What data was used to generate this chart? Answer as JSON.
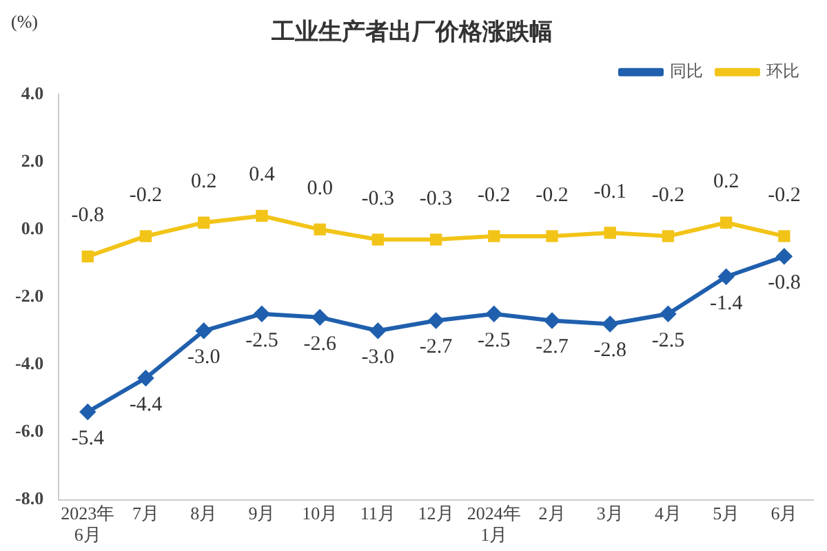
{
  "chart_data": {
    "type": "line",
    "title": "工业生产者出厂价格涨跌幅",
    "ylabel": "(%)",
    "categories": [
      "2023年\n6月",
      "7月",
      "8月",
      "9月",
      "10月",
      "11月",
      "12月",
      "2024年\n1月",
      "2月",
      "3月",
      "4月",
      "5月",
      "6月"
    ],
    "series": [
      {
        "name": "同比",
        "color": "#1f5fad",
        "marker": "diamond",
        "values": [
          -5.4,
          -4.4,
          -3.0,
          -2.5,
          -2.6,
          -3.0,
          -2.7,
          -2.5,
          -2.7,
          -2.8,
          -2.5,
          -1.4,
          -0.8
        ],
        "value_labels": [
          "-5.4",
          "-4.4",
          "-3.0",
          "-2.5",
          "-2.6",
          "-3.0",
          "-2.7",
          "-2.5",
          "-2.7",
          "-2.8",
          "-2.5",
          "-1.4",
          "-0.8"
        ]
      },
      {
        "name": "环比",
        "color": "#f2c418",
        "marker": "square",
        "values": [
          -0.8,
          -0.2,
          0.2,
          0.4,
          0.0,
          -0.3,
          -0.3,
          -0.2,
          -0.2,
          -0.1,
          -0.2,
          0.2,
          -0.2
        ],
        "value_labels": [
          "-0.8",
          "-0.2",
          "0.2",
          "0.4",
          "0.0",
          "-0.3",
          "-0.3",
          "-0.2",
          "-0.2",
          "-0.1",
          "-0.2",
          "0.2",
          "-0.2"
        ]
      }
    ],
    "ylim": [
      -8,
      4
    ],
    "yticks": [
      {
        "value": -8,
        "label": "-8.0"
      },
      {
        "value": -6,
        "label": "-6.0"
      },
      {
        "value": -4,
        "label": "-4.0"
      },
      {
        "value": -2,
        "label": "-2.0"
      },
      {
        "value": 0,
        "label": "0.0"
      },
      {
        "value": 2,
        "label": "2.0"
      },
      {
        "value": 4,
        "label": "4.0"
      }
    ],
    "grid": false,
    "legend": "top right",
    "line_style": "solid"
  }
}
